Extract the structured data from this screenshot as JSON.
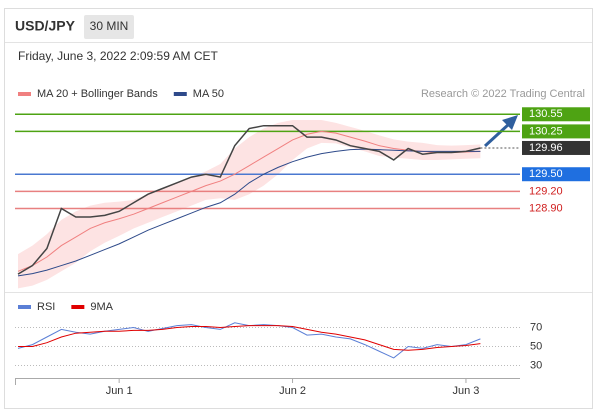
{
  "header": {
    "title": "USD/JPY",
    "interval": "30 MIN",
    "datetime": "Friday, June 3, 2022 2:09:59 AM CET"
  },
  "chart_data": [
    {
      "type": "line",
      "source": "Research © 2022 Trading Central",
      "ylim": [
        127.7,
        130.8
      ],
      "price": {
        "color": "#444444",
        "values": [
          127.75,
          127.9,
          128.2,
          128.9,
          128.75,
          128.75,
          128.78,
          128.85,
          129.0,
          129.15,
          129.25,
          129.35,
          129.45,
          129.5,
          129.45,
          130.0,
          130.3,
          130.35,
          130.35,
          130.35,
          130.15,
          130.15,
          130.1,
          130.0,
          129.95,
          129.9,
          129.75,
          129.95,
          129.85,
          129.88,
          129.88,
          129.9,
          129.96
        ]
      },
      "series": [
        {
          "name": "MA 20 + Bollinger Bands",
          "color": "#f08080",
          "band_color": "#fde3e3",
          "values": [
            127.8,
            127.9,
            128.05,
            128.25,
            128.4,
            128.55,
            128.65,
            128.72,
            128.8,
            128.9,
            129.0,
            129.1,
            129.2,
            129.3,
            129.38,
            129.5,
            129.65,
            129.8,
            129.95,
            130.1,
            130.2,
            130.25,
            130.22,
            130.15,
            130.08,
            130.0,
            129.95,
            129.92,
            129.9,
            129.88,
            129.88,
            129.89,
            129.9
          ],
          "upper": [
            128.1,
            128.25,
            128.45,
            128.7,
            128.85,
            128.95,
            129.0,
            129.02,
            129.05,
            129.15,
            129.25,
            129.35,
            129.45,
            129.55,
            129.68,
            129.95,
            130.15,
            130.3,
            130.4,
            130.45,
            130.45,
            130.45,
            130.4,
            130.33,
            130.26,
            130.18,
            130.11,
            130.07,
            130.05,
            130.01,
            130.0,
            130.01,
            130.02
          ],
          "lower": [
            127.5,
            127.55,
            127.65,
            127.8,
            127.95,
            128.15,
            128.3,
            128.42,
            128.55,
            128.65,
            128.75,
            128.85,
            128.95,
            129.05,
            129.08,
            129.05,
            129.15,
            129.3,
            129.5,
            129.75,
            129.95,
            130.05,
            130.04,
            129.97,
            129.9,
            129.82,
            129.79,
            129.77,
            129.75,
            129.75,
            129.76,
            129.77,
            129.78
          ]
        },
        {
          "name": "MA 50",
          "color": "#2e4a8a",
          "values": [
            127.72,
            127.76,
            127.82,
            127.9,
            127.98,
            128.08,
            128.18,
            128.28,
            128.4,
            128.52,
            128.62,
            128.72,
            128.82,
            128.92,
            129.0,
            129.15,
            129.35,
            129.5,
            129.62,
            129.72,
            129.8,
            129.86,
            129.9,
            129.93,
            129.94,
            129.93,
            129.92,
            129.91,
            129.9,
            129.9,
            129.9,
            129.9,
            129.9
          ]
        }
      ],
      "levels": [
        {
          "value": 130.55,
          "label": "130.55",
          "color": "#4ea313",
          "label_bg": "#4ea313",
          "text_color": "#ffffff"
        },
        {
          "value": 130.25,
          "label": "130.25",
          "color": "#4ea313",
          "label_bg": "#4ea313",
          "text_color": "#ffffff"
        },
        {
          "value": 129.96,
          "label": "129.96",
          "color": "#555555",
          "label_bg": "#333333",
          "text_color": "#ffffff",
          "dotted": true
        },
        {
          "value": 129.5,
          "label": "129.50",
          "color": "#4a78d0",
          "label_bg": "#1f6fe0",
          "text_color": "#ffffff"
        },
        {
          "value": 129.2,
          "label": "129.20",
          "color": "#e88080",
          "label_bg": null,
          "text_color": "#d02020"
        },
        {
          "value": 128.9,
          "label": "128.90",
          "color": "#e88080",
          "label_bg": null,
          "text_color": "#d02020"
        }
      ]
    },
    {
      "type": "line",
      "categories": [
        null,
        null,
        null,
        null,
        null,
        null,
        null,
        "Jun 1",
        null,
        null,
        null,
        null,
        null,
        null,
        null,
        null,
        null,
        null,
        null,
        "Jun 2",
        null,
        null,
        null,
        null,
        null,
        null,
        null,
        null,
        null,
        null,
        null,
        "Jun 3",
        null
      ],
      "ylim": [
        20,
        80
      ],
      "yticks": [
        70,
        50,
        30
      ],
      "grid": true,
      "series": [
        {
          "name": "RSI",
          "color": "#5b7fd6",
          "values": [
            48,
            52,
            60,
            68,
            65,
            63,
            66,
            68,
            70,
            66,
            69,
            72,
            73,
            70,
            68,
            75,
            72,
            73,
            72,
            70,
            62,
            63,
            60,
            58,
            52,
            45,
            38,
            50,
            48,
            52,
            50,
            52,
            58
          ]
        },
        {
          "name": "9MA",
          "color": "#e00000",
          "values": [
            50,
            50,
            54,
            60,
            64,
            65,
            66,
            66,
            67,
            67,
            68,
            70,
            71,
            71,
            70,
            71,
            72,
            72,
            72,
            71,
            68,
            65,
            63,
            60,
            57,
            52,
            47,
            46,
            47,
            49,
            50,
            51,
            53
          ]
        }
      ]
    }
  ]
}
